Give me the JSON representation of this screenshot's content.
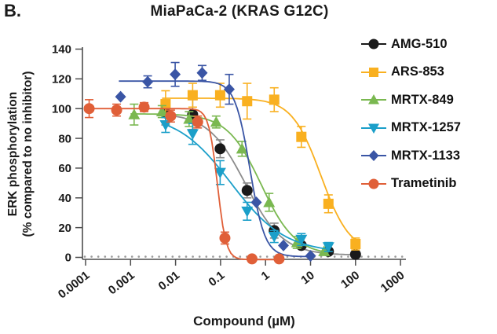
{
  "panel_label": "B.",
  "chart_data": {
    "type": "scatter",
    "title": "MiaPaCa-2 (KRAS G12C)",
    "xlabel": "Compound (µM)",
    "ylabel_line1": "ERK phosphorylation",
    "ylabel_line2": "(% compared to no inhibitor)",
    "x_scale": "log",
    "xlim": [
      0.0001,
      1000
    ],
    "ylim": [
      0,
      140
    ],
    "x_ticks": [
      "0.0001",
      "0.001",
      "0.01",
      "0.1",
      "1",
      "10",
      "100",
      "1000"
    ],
    "y_ticks": [
      0,
      20,
      40,
      60,
      80,
      100,
      120,
      140
    ],
    "grid": "dotted-zero-line",
    "legend_position": "right",
    "series": [
      {
        "name": "AMG-510",
        "marker": "circle",
        "color": "#1A1A1A",
        "line_color": "#8C8C8C",
        "x": [
          0.006,
          0.024,
          0.098,
          0.39,
          1.56,
          6.25,
          25,
          100
        ],
        "y": [
          97,
          96,
          73,
          45,
          18,
          8,
          4,
          2
        ],
        "err": [
          8,
          10,
          6,
          5,
          5,
          0,
          0,
          0
        ],
        "fit": {
          "top": 97,
          "bottom": 1.5,
          "ic50": 0.36,
          "hill": 1.05
        },
        "curve_range": [
          0.005,
          100
        ]
      },
      {
        "name": "ARS-853",
        "marker": "square",
        "color": "#F9B020",
        "line_color": "#F9B020",
        "x": [
          0.006,
          0.024,
          0.098,
          0.39,
          1.56,
          6.25,
          25,
          100
        ],
        "y": [
          103,
          109,
          109,
          105,
          106,
          81,
          36,
          9
        ],
        "err": [
          9,
          8,
          8,
          12,
          8,
          7,
          6,
          4
        ],
        "fit": {
          "top": 107,
          "bottom": 3,
          "ic50": 17,
          "hill": 1.35
        },
        "curve_range": [
          0.005,
          100
        ]
      },
      {
        "name": "MRTX-849",
        "marker": "triangle-up",
        "color": "#7AB850",
        "line_color": "#7AB850",
        "x": [
          0.0012,
          0.005,
          0.02,
          0.08,
          0.3,
          1.2,
          5,
          20
        ],
        "y": [
          96,
          98,
          93,
          91,
          73,
          37,
          10,
          4
        ],
        "err": [
          7,
          4,
          5,
          4,
          5,
          6,
          4,
          0
        ],
        "fit": {
          "top": 96.5,
          "bottom": 1.5,
          "ic50": 0.8,
          "hill": 1.15
        },
        "curve_range": [
          0.001,
          22
        ]
      },
      {
        "name": "MRTX-1257",
        "marker": "triangle-down",
        "color": "#1B9FC9",
        "line_color": "#1B9FC9",
        "x": [
          0.006,
          0.024,
          0.098,
          0.39,
          1.56,
          6.25,
          25
        ],
        "y": [
          89,
          83,
          57,
          31,
          14,
          12,
          7
        ],
        "err": [
          5,
          7,
          8,
          6,
          4,
          4,
          3
        ],
        "fit": {
          "top": 97,
          "bottom": 3,
          "ic50": 0.17,
          "hill": 0.72
        },
        "curve_range": [
          0.005,
          27
        ]
      },
      {
        "name": "MRTX-1133",
        "marker": "diamond",
        "color": "#3A55A5",
        "line_color": "#3A55A5",
        "x": [
          0.0006,
          0.0024,
          0.0098,
          0.039,
          0.156,
          0.625,
          2.5,
          10
        ],
        "y": [
          108,
          118,
          123,
          124,
          113,
          37,
          8,
          1
        ],
        "err": [
          0,
          4,
          8,
          5,
          10,
          0,
          0,
          0
        ],
        "fit": {
          "top": 118.5,
          "bottom": 0.5,
          "ic50": 0.45,
          "hill": 2.6
        },
        "curve_range": [
          0.00055,
          10.5
        ]
      },
      {
        "name": "Trametinib",
        "marker": "circle",
        "color": "#E05F38",
        "line_color": "#E05F38",
        "x": [
          0.00012,
          0.00049,
          0.002,
          0.0078,
          0.031,
          0.125,
          0.5,
          2
        ],
        "y": [
          100,
          99,
          101,
          95,
          91,
          13,
          -1,
          -1
        ],
        "err": [
          6,
          4,
          3,
          4,
          4,
          4,
          0,
          0
        ],
        "fit": {
          "top": 100,
          "bottom": -1.5,
          "ic50": 0.085,
          "hill": 4.5
        },
        "curve_range": [
          0.00012,
          2.1
        ]
      }
    ]
  }
}
